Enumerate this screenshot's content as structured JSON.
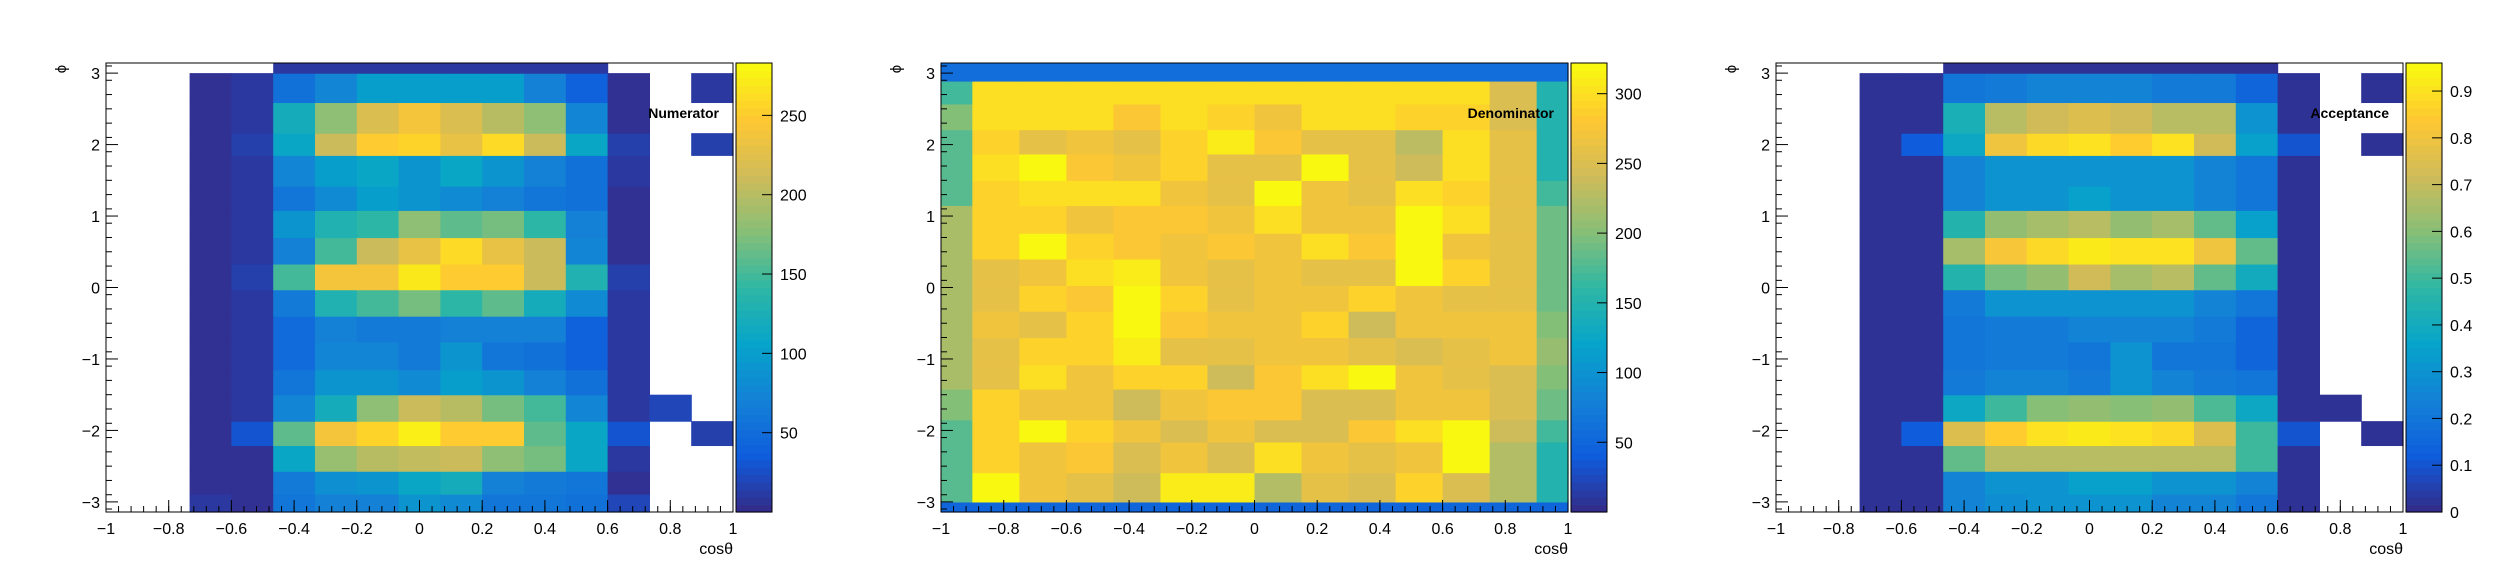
{
  "figure": {
    "background": "#ffffff"
  },
  "colormap": [
    "#352a87",
    "#0f5cdd",
    "#1481d6",
    "#06a4ca",
    "#2eb7a4",
    "#87bf77",
    "#d1bb59",
    "#fec832",
    "#f9fb0e"
  ],
  "empty_color": "#ffffff",
  "chart_data": [
    {
      "type": "heatmap",
      "title": "Numerator",
      "xlabel": "cosθ",
      "ylabel": "ϕ",
      "xlim": [
        -1,
        1
      ],
      "ylim": [
        -3.14159,
        3.14159
      ],
      "x_edges": [
        -1.0,
        -0.866667,
        -0.733333,
        -0.6,
        -0.466667,
        -0.333333,
        -0.2,
        -0.066667,
        0.066667,
        0.2,
        0.333333,
        0.466667,
        0.6,
        0.733333,
        0.866667,
        1.0
      ],
      "y_edges": [
        -3.14159,
        -2.89,
        -2.57,
        -2.21,
        -1.87,
        -1.5,
        -1.15,
        -0.76,
        -0.4,
        -0.03,
        0.33,
        0.7,
        1.08,
        1.42,
        1.85,
        2.16,
        2.59,
        3.0,
        3.14159
      ],
      "x_ticks": [
        -1,
        -0.8,
        -0.6,
        -0.4,
        -0.2,
        0,
        0.2,
        0.4,
        0.6,
        0.8,
        1
      ],
      "x_tick_labels": [
        "−1",
        "−0.8",
        "−0.6",
        "−0.4",
        "−0.2",
        "0",
        "0.2",
        "0.4",
        "0.6",
        "0.8",
        "1"
      ],
      "y_ticks": [
        -3,
        -2,
        -1,
        0,
        1,
        2,
        3
      ],
      "y_tick_labels": [
        "−3",
        "−2",
        "−1",
        "0",
        "1",
        "2",
        "3"
      ],
      "colorbar": {
        "min": 0,
        "max": 283,
        "ticks": [
          50,
          100,
          150,
          200,
          250
        ],
        "tick_labels": [
          "50",
          "100",
          "150",
          "200",
          "250"
        ]
      },
      "z": [
        [
          0,
          0,
          10,
          5,
          60,
          70,
          70,
          90,
          80,
          60,
          60,
          55,
          20,
          0,
          0
        ],
        [
          0,
          0,
          5,
          5,
          65,
          85,
          90,
          110,
          120,
          70,
          65,
          60,
          5,
          0,
          0
        ],
        [
          0,
          0,
          5,
          5,
          110,
          185,
          200,
          205,
          210,
          180,
          170,
          110,
          10,
          0,
          0
        ],
        [
          0,
          0,
          5,
          30,
          160,
          240,
          255,
          275,
          250,
          250,
          160,
          110,
          30,
          0,
          15
        ],
        [
          0,
          0,
          5,
          10,
          75,
          120,
          180,
          210,
          200,
          170,
          150,
          75,
          10,
          20,
          0
        ],
        [
          0,
          0,
          5,
          10,
          60,
          90,
          90,
          80,
          100,
          90,
          70,
          55,
          10,
          0,
          0
        ],
        [
          0,
          0,
          5,
          10,
          50,
          75,
          75,
          65,
          90,
          60,
          55,
          40,
          10,
          0,
          0
        ],
        [
          0,
          0,
          5,
          10,
          50,
          70,
          65,
          65,
          70,
          70,
          70,
          40,
          10,
          0,
          0
        ],
        [
          0,
          0,
          5,
          10,
          65,
          130,
          150,
          170,
          140,
          160,
          120,
          80,
          10,
          0,
          0
        ],
        [
          0,
          0,
          5,
          15,
          150,
          240,
          240,
          270,
          250,
          250,
          210,
          130,
          15,
          0,
          0
        ],
        [
          0,
          0,
          5,
          10,
          70,
          150,
          210,
          230,
          260,
          230,
          210,
          75,
          5,
          0,
          0
        ],
        [
          0,
          0,
          5,
          10,
          90,
          130,
          140,
          180,
          160,
          170,
          140,
          70,
          5,
          0,
          0
        ],
        [
          0,
          0,
          5,
          10,
          60,
          80,
          100,
          90,
          80,
          70,
          60,
          55,
          5,
          0,
          0
        ],
        [
          0,
          0,
          5,
          10,
          75,
          100,
          110,
          90,
          110,
          90,
          70,
          55,
          10,
          0,
          0
        ],
        [
          0,
          0,
          5,
          15,
          110,
          210,
          250,
          255,
          230,
          260,
          210,
          110,
          15,
          0,
          15
        ],
        [
          0,
          0,
          5,
          10,
          120,
          180,
          220,
          240,
          220,
          200,
          180,
          75,
          5,
          0,
          0
        ],
        [
          0,
          0,
          5,
          10,
          55,
          75,
          100,
          100,
          100,
          100,
          70,
          40,
          5,
          0,
          10
        ],
        [
          0,
          0,
          0,
          0,
          10,
          10,
          10,
          10,
          10,
          10,
          10,
          10,
          0,
          0,
          0
        ]
      ]
    },
    {
      "type": "heatmap",
      "title": "Denominator",
      "xlabel": "cosθ",
      "ylabel": "ϕ",
      "xlim": [
        -1,
        1
      ],
      "ylim": [
        -3.14159,
        3.14159
      ],
      "x_edges": [
        -1.0,
        -0.9,
        -0.75,
        -0.6,
        -0.45,
        -0.3,
        -0.15,
        0.0,
        0.15,
        0.3,
        0.45,
        0.6,
        0.75,
        0.9,
        1.0
      ],
      "y_edges": [
        -3.14159,
        -3.0,
        -2.59,
        -2.16,
        -1.85,
        -1.42,
        -1.08,
        -0.7,
        -0.33,
        0.03,
        0.4,
        0.76,
        1.15,
        1.5,
        1.87,
        2.21,
        2.57,
        2.89,
        3.14159
      ],
      "x_ticks": [
        -1,
        -0.8,
        -0.6,
        -0.4,
        -0.2,
        0,
        0.2,
        0.4,
        0.6,
        0.8,
        1
      ],
      "x_tick_labels": [
        "−1",
        "−0.8",
        "−0.6",
        "−0.4",
        "−0.2",
        "0",
        "0.2",
        "0.4",
        "0.6",
        "0.8",
        "1"
      ],
      "y_ticks": [
        -3,
        -2,
        -1,
        0,
        1,
        2,
        3
      ],
      "y_tick_labels": [
        "−3",
        "−2",
        "−1",
        "0",
        "1",
        "2",
        "3"
      ],
      "colorbar": {
        "min": 0,
        "max": 322,
        "ticks": [
          50,
          100,
          150,
          200,
          250,
          300
        ],
        "tick_labels": [
          "50",
          "100",
          "150",
          "200",
          "250",
          "300"
        ]
      },
      "z": [
        [
          50,
          50,
          50,
          50,
          50,
          50,
          50,
          50,
          50,
          50,
          50,
          50,
          50,
          50
        ],
        [
          180,
          320,
          270,
          260,
          240,
          310,
          310,
          225,
          260,
          250,
          290,
          250,
          225,
          150
        ],
        [
          180,
          290,
          270,
          280,
          250,
          270,
          250,
          300,
          270,
          260,
          270,
          320,
          225,
          150
        ],
        [
          180,
          290,
          320,
          290,
          270,
          250,
          270,
          250,
          250,
          280,
          300,
          320,
          240,
          170
        ],
        [
          200,
          290,
          270,
          270,
          240,
          270,
          280,
          280,
          250,
          250,
          270,
          270,
          250,
          190
        ],
        [
          220,
          260,
          300,
          270,
          290,
          290,
          240,
          280,
          300,
          320,
          270,
          260,
          250,
          200
        ],
        [
          220,
          260,
          290,
          290,
          310,
          260,
          260,
          270,
          270,
          260,
          250,
          260,
          270,
          210
        ],
        [
          220,
          270,
          260,
          290,
          320,
          280,
          270,
          270,
          290,
          240,
          270,
          270,
          270,
          200
        ],
        [
          220,
          260,
          290,
          280,
          320,
          290,
          260,
          270,
          270,
          290,
          270,
          260,
          260,
          190
        ],
        [
          220,
          260,
          270,
          300,
          310,
          270,
          260,
          270,
          260,
          260,
          320,
          290,
          260,
          190
        ],
        [
          220,
          290,
          320,
          290,
          280,
          270,
          280,
          270,
          300,
          280,
          320,
          270,
          260,
          190
        ],
        [
          220,
          290,
          290,
          270,
          280,
          280,
          270,
          300,
          270,
          270,
          320,
          300,
          260,
          190
        ],
        [
          180,
          290,
          300,
          300,
          300,
          270,
          260,
          320,
          270,
          260,
          300,
          290,
          260,
          170
        ],
        [
          180,
          300,
          320,
          280,
          270,
          290,
          260,
          260,
          320,
          260,
          240,
          300,
          260,
          150
        ],
        [
          180,
          290,
          260,
          270,
          260,
          290,
          310,
          280,
          260,
          260,
          230,
          300,
          260,
          150
        ],
        [
          200,
          300,
          300,
          300,
          280,
          300,
          290,
          270,
          300,
          300,
          290,
          290,
          250,
          150
        ],
        [
          170,
          300,
          300,
          300,
          300,
          300,
          300,
          300,
          300,
          300,
          300,
          300,
          250,
          150
        ],
        [
          60,
          60,
          60,
          60,
          60,
          60,
          60,
          60,
          60,
          60,
          60,
          60,
          60,
          60
        ]
      ]
    },
    {
      "type": "heatmap",
      "title": "Acceptance",
      "xlabel": "cosθ",
      "ylabel": "ϕ",
      "xlim": [
        -1,
        1
      ],
      "ylim": [
        -3.14159,
        3.14159
      ],
      "x_edges": [
        -1.0,
        -0.866667,
        -0.733333,
        -0.6,
        -0.466667,
        -0.333333,
        -0.2,
        -0.066667,
        0.066667,
        0.2,
        0.333333,
        0.466667,
        0.6,
        0.733333,
        0.866667,
        1.0
      ],
      "y_edges": [
        -3.14159,
        -2.89,
        -2.57,
        -2.21,
        -1.87,
        -1.5,
        -1.15,
        -0.76,
        -0.4,
        -0.03,
        0.33,
        0.7,
        1.08,
        1.42,
        1.85,
        2.16,
        2.59,
        3.0,
        3.14159
      ],
      "x_ticks": [
        -1,
        -0.8,
        -0.6,
        -0.4,
        -0.2,
        0,
        0.2,
        0.4,
        0.6,
        0.8,
        1
      ],
      "x_tick_labels": [
        "−1",
        "−0.8",
        "−0.6",
        "−0.4",
        "−0.2",
        "0",
        "0.2",
        "0.4",
        "0.6",
        "0.8",
        "1"
      ],
      "y_ticks": [
        -3,
        -2,
        -1,
        0,
        1,
        2,
        3
      ],
      "y_tick_labels": [
        "−3",
        "−2",
        "−1",
        "0",
        "1",
        "2",
        "3"
      ],
      "colorbar": {
        "min": 0,
        "max": 0.96,
        "ticks": [
          0,
          0.1,
          0.2,
          0.3,
          0.4,
          0.5,
          0.6,
          0.7,
          0.8,
          0.9
        ],
        "tick_labels": [
          "0",
          "0.1",
          "0.2",
          "0.3",
          "0.4",
          "0.5",
          "0.6",
          "0.7",
          "0.8",
          "0.9"
        ]
      },
      "z": [
        [
          0,
          0,
          0.02,
          0.02,
          0.25,
          0.28,
          0.3,
          0.3,
          0.3,
          0.25,
          0.25,
          0.2,
          0.02,
          0,
          0
        ],
        [
          0,
          0,
          0.02,
          0.02,
          0.25,
          0.3,
          0.3,
          0.35,
          0.35,
          0.3,
          0.3,
          0.25,
          0.02,
          0,
          0
        ],
        [
          0,
          0,
          0.02,
          0.02,
          0.55,
          0.68,
          0.68,
          0.68,
          0.68,
          0.68,
          0.68,
          0.5,
          0.02,
          0,
          0
        ],
        [
          0,
          0,
          0.02,
          0.12,
          0.75,
          0.85,
          0.9,
          0.92,
          0.9,
          0.88,
          0.75,
          0.5,
          0.1,
          0,
          0.02
        ],
        [
          0,
          0,
          0.02,
          0.02,
          0.38,
          0.5,
          0.6,
          0.62,
          0.6,
          0.62,
          0.52,
          0.38,
          0.02,
          0.02,
          0
        ],
        [
          0,
          0,
          0.02,
          0.02,
          0.22,
          0.25,
          0.25,
          0.22,
          0.3,
          0.25,
          0.22,
          0.2,
          0.02,
          0,
          0
        ],
        [
          0,
          0,
          0.02,
          0.02,
          0.2,
          0.22,
          0.22,
          0.2,
          0.3,
          0.2,
          0.2,
          0.15,
          0.02,
          0,
          0
        ],
        [
          0,
          0,
          0.02,
          0.02,
          0.2,
          0.22,
          0.22,
          0.25,
          0.25,
          0.25,
          0.22,
          0.15,
          0.02,
          0,
          0
        ],
        [
          0,
          0,
          0.02,
          0.02,
          0.22,
          0.3,
          0.3,
          0.3,
          0.3,
          0.3,
          0.25,
          0.2,
          0.02,
          0,
          0
        ],
        [
          0,
          0,
          0.02,
          0.02,
          0.45,
          0.58,
          0.62,
          0.72,
          0.65,
          0.68,
          0.55,
          0.4,
          0.02,
          0,
          0
        ],
        [
          0,
          0,
          0.02,
          0.02,
          0.65,
          0.82,
          0.88,
          0.92,
          0.9,
          0.9,
          0.8,
          0.55,
          0.02,
          0,
          0
        ],
        [
          0,
          0,
          0.02,
          0.02,
          0.45,
          0.62,
          0.65,
          0.68,
          0.62,
          0.65,
          0.55,
          0.35,
          0.02,
          0,
          0
        ],
        [
          0,
          0,
          0.02,
          0.02,
          0.25,
          0.3,
          0.3,
          0.35,
          0.3,
          0.3,
          0.25,
          0.2,
          0.02,
          0,
          0
        ],
        [
          0,
          0,
          0.02,
          0.02,
          0.25,
          0.3,
          0.3,
          0.3,
          0.3,
          0.3,
          0.25,
          0.2,
          0.02,
          0,
          0
        ],
        [
          0,
          0,
          0.02,
          0.12,
          0.38,
          0.8,
          0.88,
          0.9,
          0.85,
          0.9,
          0.72,
          0.35,
          0.1,
          0,
          0.02
        ],
        [
          0,
          0,
          0.02,
          0.02,
          0.42,
          0.68,
          0.72,
          0.75,
          0.72,
          0.68,
          0.68,
          0.3,
          0.02,
          0,
          0
        ],
        [
          0,
          0,
          0.02,
          0.02,
          0.2,
          0.22,
          0.25,
          0.25,
          0.25,
          0.22,
          0.22,
          0.15,
          0.02,
          0,
          0.02
        ],
        [
          0,
          0,
          0,
          0,
          0.02,
          0.02,
          0.02,
          0.02,
          0.02,
          0.02,
          0.02,
          0.02,
          0,
          0,
          0
        ]
      ]
    }
  ]
}
